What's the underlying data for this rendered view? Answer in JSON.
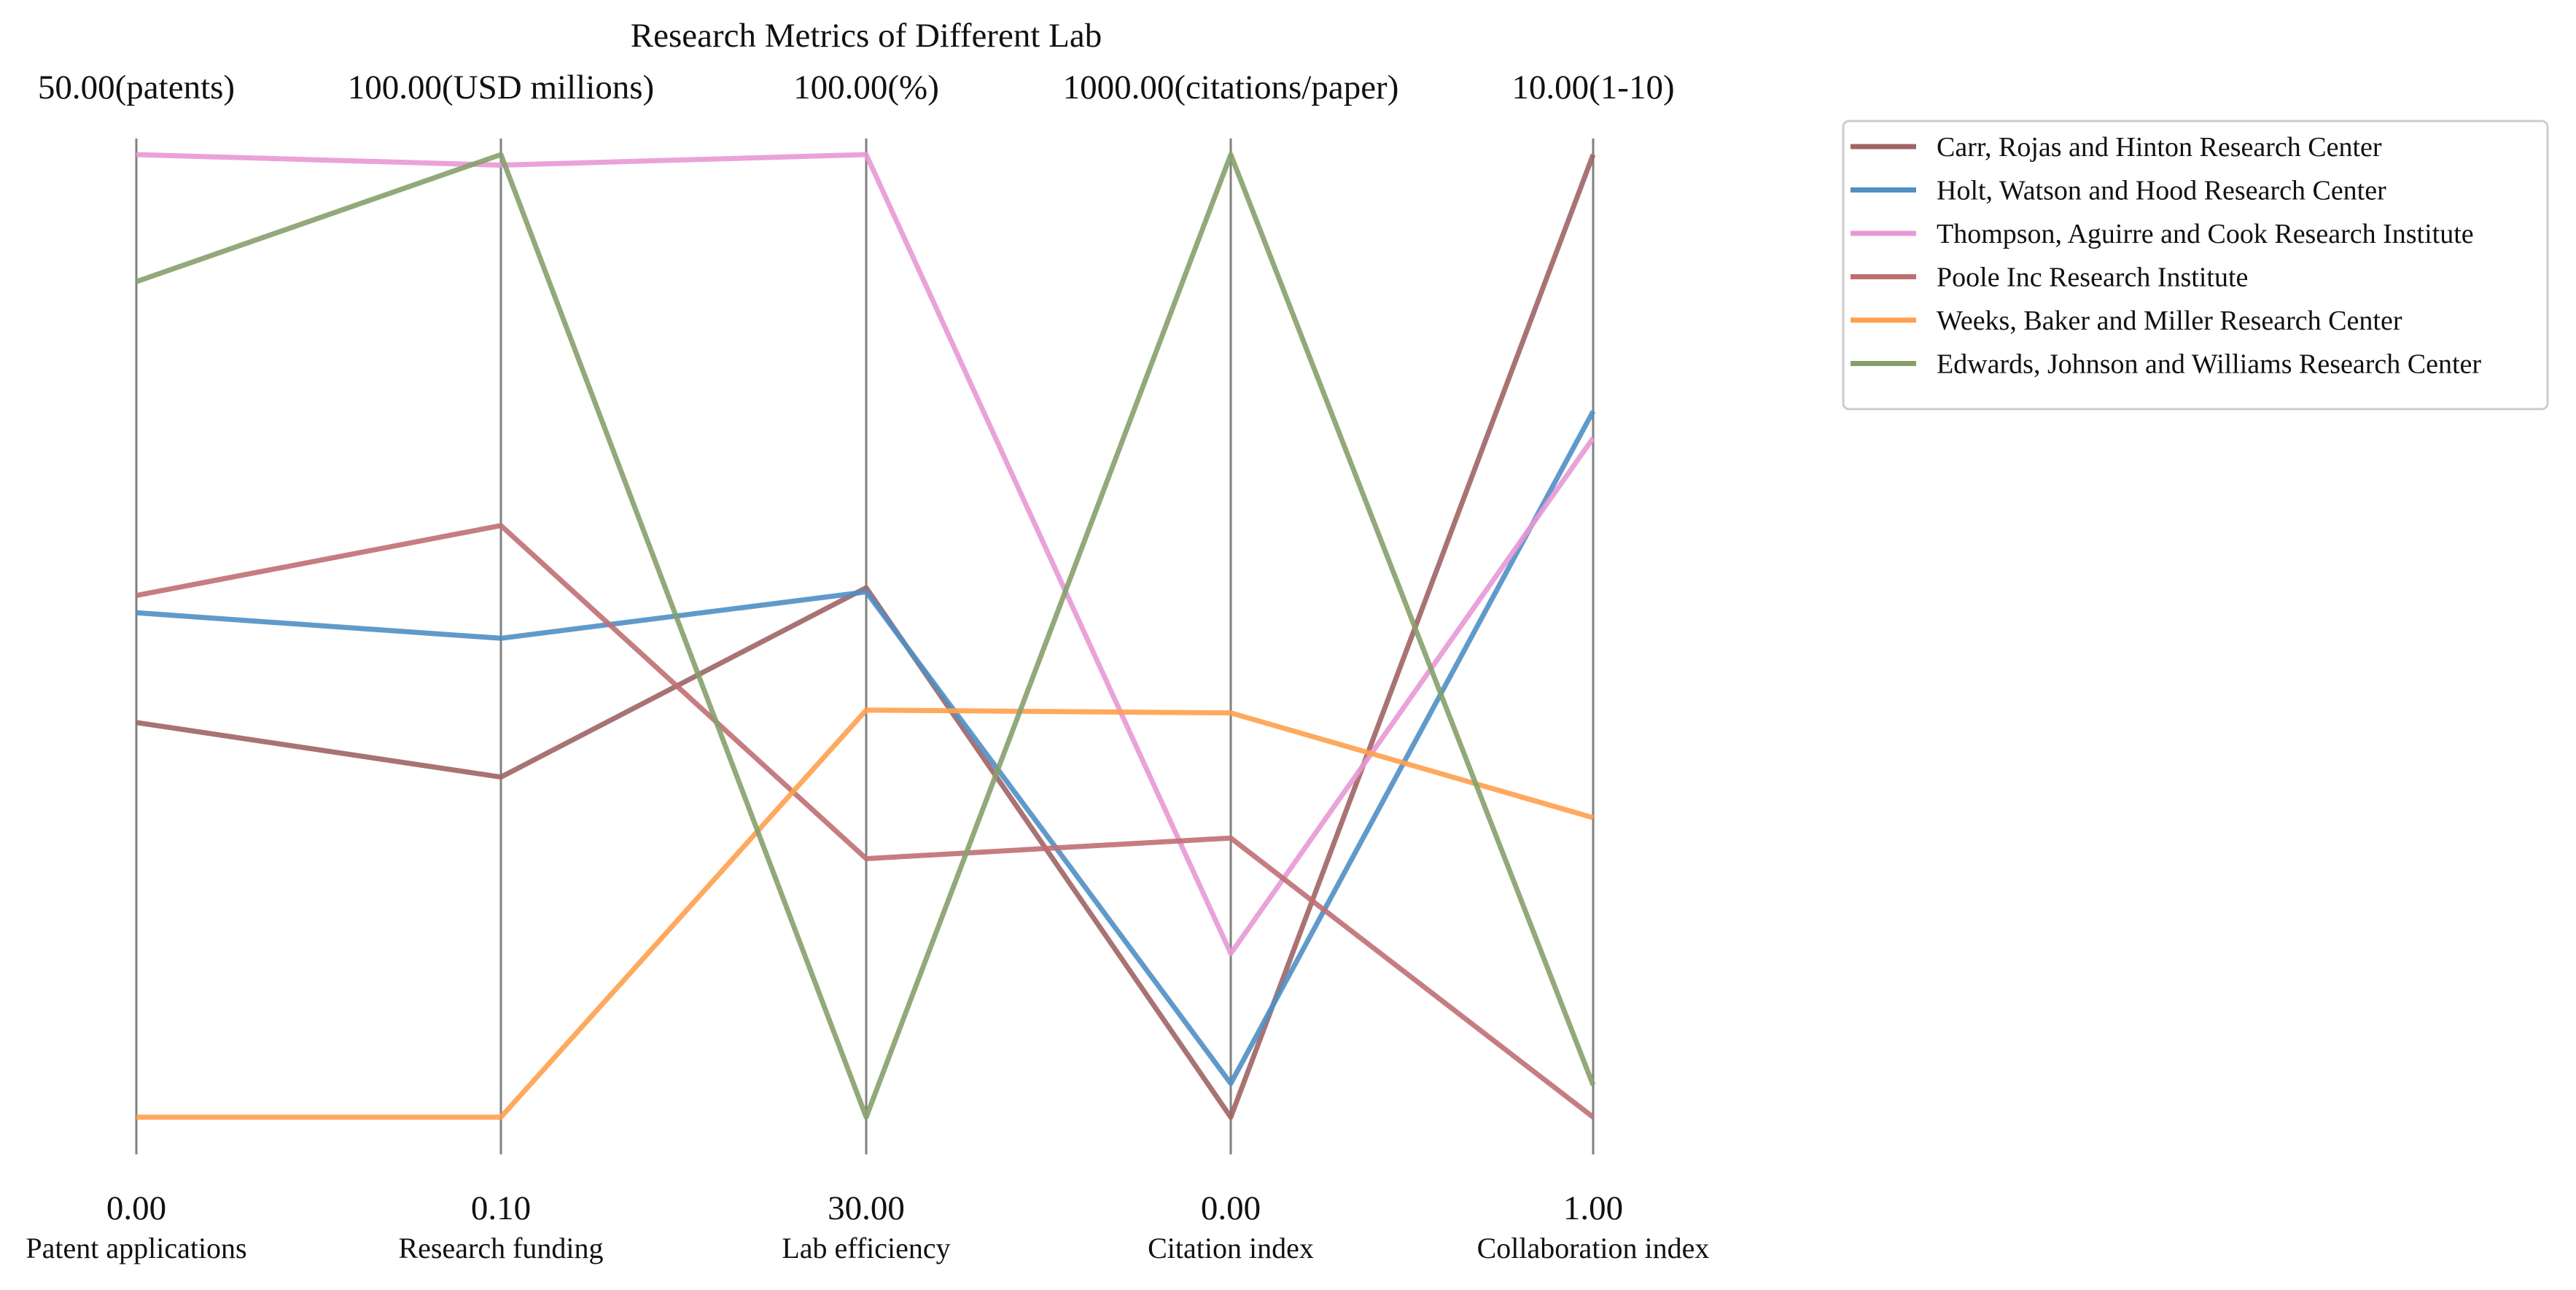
{
  "chart_data": {
    "type": "parallel-coordinates",
    "title": "Research Metrics of Different Lab",
    "axes": [
      {
        "name": "Patent applications",
        "min": 0.0,
        "max": 50.0,
        "min_label": "0.00",
        "max_label": "50.00(patents)"
      },
      {
        "name": "Research funding",
        "min": 0.1,
        "max": 100.0,
        "min_label": "0.10",
        "max_label": "100.00(USD millions)"
      },
      {
        "name": "Lab efficiency",
        "min": 30.0,
        "max": 100.0,
        "min_label": "30.00",
        "max_label": "100.00(%)"
      },
      {
        "name": "Citation index",
        "min": 0.0,
        "max": 1000.0,
        "min_label": "0.00",
        "max_label": "1000.00(citations/paper)"
      },
      {
        "name": "Collaboration index",
        "min": 1.0,
        "max": 10.0,
        "min_label": "1.00",
        "max_label": "10.00(1-10)"
      }
    ],
    "series": [
      {
        "name": "Carr, Rojas and Hinton  Research Center",
        "color": "#a06464",
        "values": [
          20.5,
          35.4,
          68.5,
          0.0,
          10.0
        ]
      },
      {
        "name": "Holt, Watson and Hood  Research Center",
        "color": "#4f8fc4",
        "values": [
          26.2,
          49.8,
          68.2,
          35.0,
          7.6
        ]
      },
      {
        "name": "Thompson, Aguirre and Cook  Research Institute",
        "color": "#e898d6",
        "values": [
          50.0,
          98.9,
          100.0,
          170.0,
          7.35
        ]
      },
      {
        "name": "Poole Inc  Research Institute",
        "color": "#bf6f74",
        "values": [
          27.1,
          61.5,
          48.8,
          290.0,
          1.0
        ]
      },
      {
        "name": "Weeks, Baker and Miller  Research Center",
        "color": "#ffa04c",
        "values": [
          0.0,
          0.1,
          59.6,
          420.0,
          3.8
        ]
      },
      {
        "name": "Edwards, Johnson and Williams  Research Center",
        "color": "#86a06a",
        "values": [
          43.4,
          100.0,
          30.0,
          1000.0,
          1.3
        ]
      }
    ],
    "legend_position": "top-right"
  }
}
